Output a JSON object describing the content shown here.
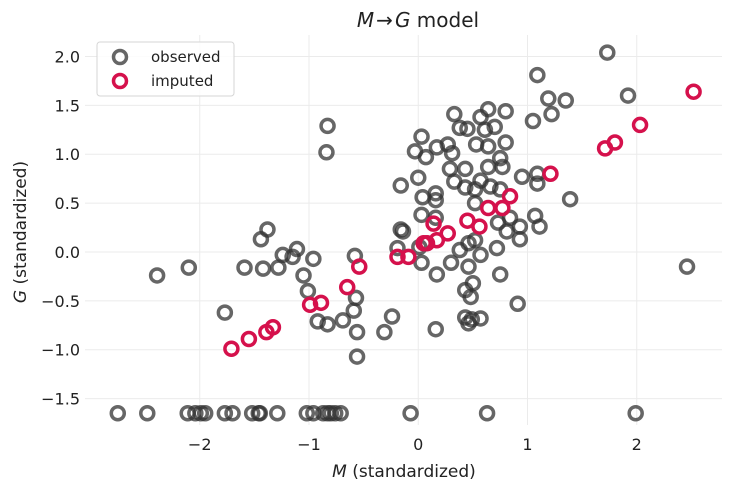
{
  "chart_data": {
    "type": "scatter",
    "title_parts": {
      "left": "M",
      "arrow": "→",
      "right": "G",
      "suffix": " model"
    },
    "title": "M → G model",
    "xlabel_var": "M",
    "xlabel_rest": " (standardized)",
    "ylabel_var": "G",
    "ylabel_rest": " (standardized)",
    "xlim": [
      -3.05,
      2.78
    ],
    "ylim": [
      -1.77,
      2.22
    ],
    "xticks": [
      -2,
      -1,
      0,
      1,
      2
    ],
    "xtick_labels": [
      "−2",
      "−1",
      "0",
      "1",
      "2"
    ],
    "yticks": [
      -1.5,
      -1.0,
      -0.5,
      0.0,
      0.5,
      1.0,
      1.5,
      2.0
    ],
    "ytick_labels": [
      "−1.5",
      "−1.0",
      "−0.5",
      "0.0",
      "0.5",
      "1.0",
      "1.5",
      "2.0"
    ],
    "grid": true,
    "legend_position": "top-left",
    "series": [
      {
        "name": "observed",
        "color": "#333333",
        "points": [
          [
            -2.39,
            -0.24
          ],
          [
            -2.1,
            -0.16
          ],
          [
            -1.77,
            -0.62
          ],
          [
            -1.59,
            -0.16
          ],
          [
            -1.42,
            -0.17
          ],
          [
            -1.28,
            -0.16
          ],
          [
            -1.44,
            0.13
          ],
          [
            -1.38,
            0.23
          ],
          [
            -1.24,
            -0.03
          ],
          [
            -1.15,
            -0.05
          ],
          [
            -1.11,
            0.03
          ],
          [
            -0.96,
            -0.07
          ],
          [
            -1.05,
            -0.24
          ],
          [
            -1.01,
            -0.4
          ],
          [
            -0.92,
            -0.71
          ],
          [
            -0.83,
            -0.74
          ],
          [
            -0.69,
            -0.7
          ],
          [
            -0.59,
            -0.6
          ],
          [
            -0.57,
            -0.47
          ],
          [
            -0.56,
            -0.82
          ],
          [
            -0.56,
            -1.07
          ],
          [
            -0.58,
            -0.04
          ],
          [
            -0.83,
            1.29
          ],
          [
            -0.84,
            1.02
          ],
          [
            -0.31,
            -0.82
          ],
          [
            -0.24,
            -0.66
          ],
          [
            -0.16,
            0.68
          ],
          [
            -0.16,
            0.23
          ],
          [
            -0.14,
            0.21
          ],
          [
            1.73,
            2.04
          ],
          [
            1.09,
            1.81
          ],
          [
            1.92,
            1.6
          ],
          [
            1.19,
            1.57
          ],
          [
            1.35,
            1.55
          ],
          [
            1.22,
            1.41
          ],
          [
            1.05,
            1.34
          ],
          [
            0.33,
            1.41
          ],
          [
            0.38,
            1.27
          ],
          [
            0.45,
            1.26
          ],
          [
            0.57,
            1.38
          ],
          [
            0.64,
            1.46
          ],
          [
            0.8,
            1.44
          ],
          [
            0.7,
            1.28
          ],
          [
            0.61,
            1.25
          ],
          [
            0.53,
            1.1
          ],
          [
            0.64,
            1.08
          ],
          [
            0.8,
            1.12
          ],
          [
            0.03,
            1.18
          ],
          [
            -0.03,
            1.03
          ],
          [
            0.07,
            0.97
          ],
          [
            0.17,
            1.07
          ],
          [
            0.27,
            1.1
          ],
          [
            0.31,
            1.01
          ],
          [
            0.29,
            0.85
          ],
          [
            0.43,
            0.85
          ],
          [
            0.33,
            0.72
          ],
          [
            0.64,
            0.87
          ],
          [
            0.75,
            0.96
          ],
          [
            0.77,
            0.87
          ],
          [
            0.57,
            0.73
          ],
          [
            0.43,
            0.66
          ],
          [
            0.52,
            0.64
          ],
          [
            0.66,
            0.67
          ],
          [
            0.75,
            0.64
          ],
          [
            0.95,
            0.77
          ],
          [
            1.09,
            0.8
          ],
          [
            1.09,
            0.7
          ],
          [
            1.39,
            0.54
          ],
          [
            0.0,
            0.76
          ],
          [
            0.04,
            0.56
          ],
          [
            0.16,
            0.6
          ],
          [
            0.16,
            0.53
          ],
          [
            0.52,
            0.5
          ],
          [
            0.03,
            0.38
          ],
          [
            0.16,
            0.35
          ],
          [
            0.84,
            0.35
          ],
          [
            1.07,
            0.37
          ],
          [
            1.11,
            0.26
          ],
          [
            0.93,
            0.26
          ],
          [
            0.81,
            0.21
          ],
          [
            0.73,
            0.3
          ],
          [
            -0.19,
            0.04
          ],
          [
            0.01,
            0.05
          ],
          [
            0.38,
            0.02
          ],
          [
            0.46,
            0.09
          ],
          [
            0.52,
            0.12
          ],
          [
            0.57,
            -0.03
          ],
          [
            0.72,
            0.04
          ],
          [
            0.93,
            0.13
          ],
          [
            0.03,
            -0.11
          ],
          [
            0.17,
            -0.23
          ],
          [
            0.3,
            -0.11
          ],
          [
            0.46,
            -0.15
          ],
          [
            0.75,
            -0.23
          ],
          [
            0.5,
            -0.32
          ],
          [
            0.43,
            -0.39
          ],
          [
            0.48,
            -0.46
          ],
          [
            0.16,
            -0.79
          ],
          [
            0.43,
            -0.67
          ],
          [
            0.49,
            -0.69
          ],
          [
            0.46,
            -0.73
          ],
          [
            0.57,
            -0.68
          ],
          [
            0.91,
            -0.53
          ],
          [
            2.46,
            -0.15
          ],
          [
            -2.75,
            -1.65
          ],
          [
            -2.48,
            -1.65
          ],
          [
            -2.11,
            -1.65
          ],
          [
            -2.04,
            -1.65
          ],
          [
            -1.99,
            -1.65
          ],
          [
            -1.95,
            -1.65
          ],
          [
            -1.77,
            -1.65
          ],
          [
            -1.7,
            -1.65
          ],
          [
            -1.52,
            -1.65
          ],
          [
            -1.46,
            -1.65
          ],
          [
            -1.45,
            -1.65
          ],
          [
            -1.29,
            -1.65
          ],
          [
            -1.02,
            -1.65
          ],
          [
            -0.96,
            -1.65
          ],
          [
            -0.87,
            -1.65
          ],
          [
            -0.83,
            -1.65
          ],
          [
            -0.8,
            -1.65
          ],
          [
            -0.76,
            -1.65
          ],
          [
            -0.71,
            -1.65
          ],
          [
            -0.07,
            -1.65
          ],
          [
            0.63,
            -1.65
          ],
          [
            1.99,
            -1.65
          ]
        ]
      },
      {
        "name": "imputed",
        "color": "#d5114c",
        "points": [
          [
            -1.71,
            -0.99
          ],
          [
            -1.55,
            -0.89
          ],
          [
            -1.39,
            -0.82
          ],
          [
            -1.33,
            -0.77
          ],
          [
            -0.99,
            -0.54
          ],
          [
            -0.89,
            -0.52
          ],
          [
            -0.65,
            -0.36
          ],
          [
            -0.54,
            -0.15
          ],
          [
            2.52,
            1.64
          ],
          [
            2.03,
            1.3
          ],
          [
            1.8,
            1.12
          ],
          [
            1.71,
            1.06
          ],
          [
            1.21,
            0.8
          ],
          [
            0.84,
            0.57
          ],
          [
            0.64,
            0.45
          ],
          [
            0.77,
            0.45
          ],
          [
            0.45,
            0.32
          ],
          [
            0.56,
            0.26
          ],
          [
            0.14,
            0.29
          ],
          [
            0.27,
            0.19
          ],
          [
            0.08,
            0.09
          ],
          [
            0.17,
            0.12
          ],
          [
            0.05,
            0.09
          ],
          [
            -0.19,
            -0.05
          ],
          [
            -0.09,
            -0.05
          ]
        ]
      }
    ]
  }
}
